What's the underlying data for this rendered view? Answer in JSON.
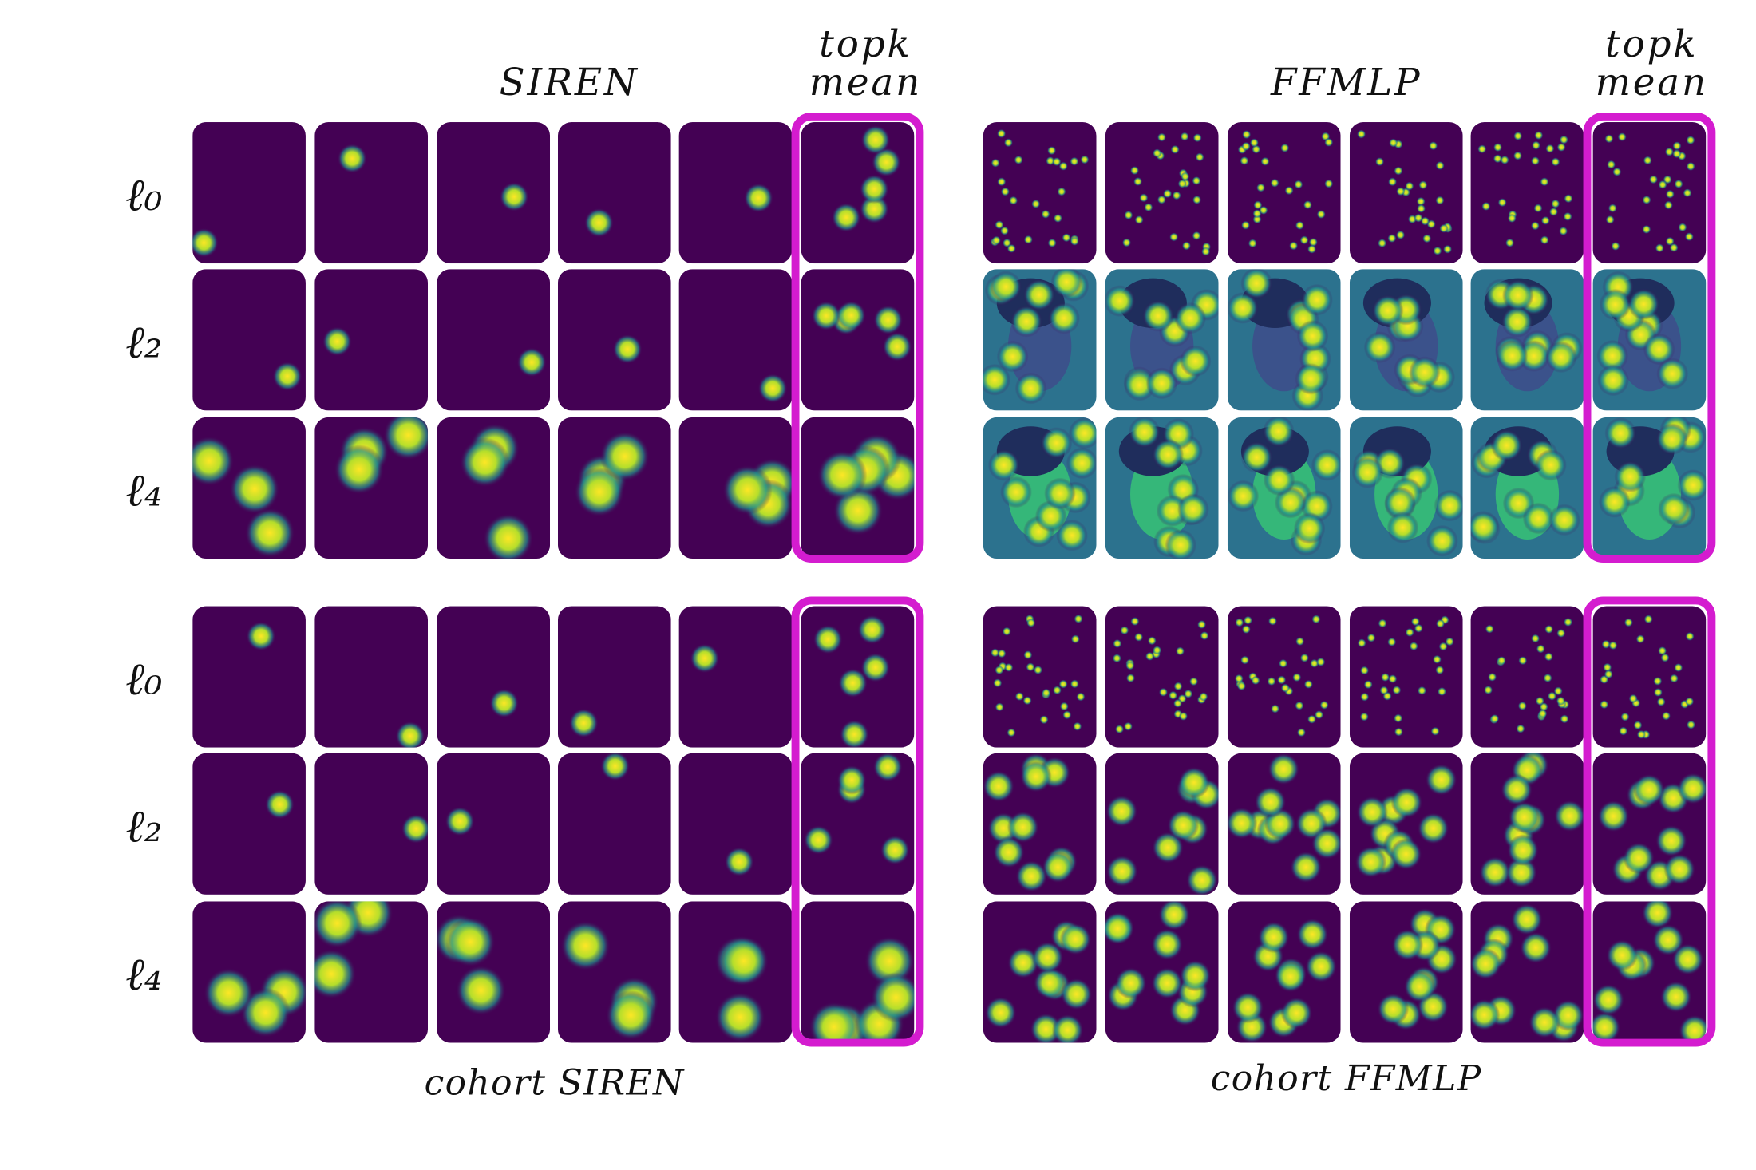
{
  "top_left": {
    "title": "SIREN",
    "topk": "topk",
    "mean": "mean",
    "row_labels": [
      "ℓ₀",
      "ℓ₂",
      "ℓ₄"
    ]
  },
  "top_right": {
    "title": "FFMLP",
    "topk": "topk",
    "mean": "mean"
  },
  "bottom_left": {
    "caption": "cohort SIREN",
    "row_labels": [
      "ℓ₀",
      "ℓ₂",
      "ℓ₄"
    ]
  },
  "bottom_right": {
    "caption": "cohort FFMLP"
  }
}
